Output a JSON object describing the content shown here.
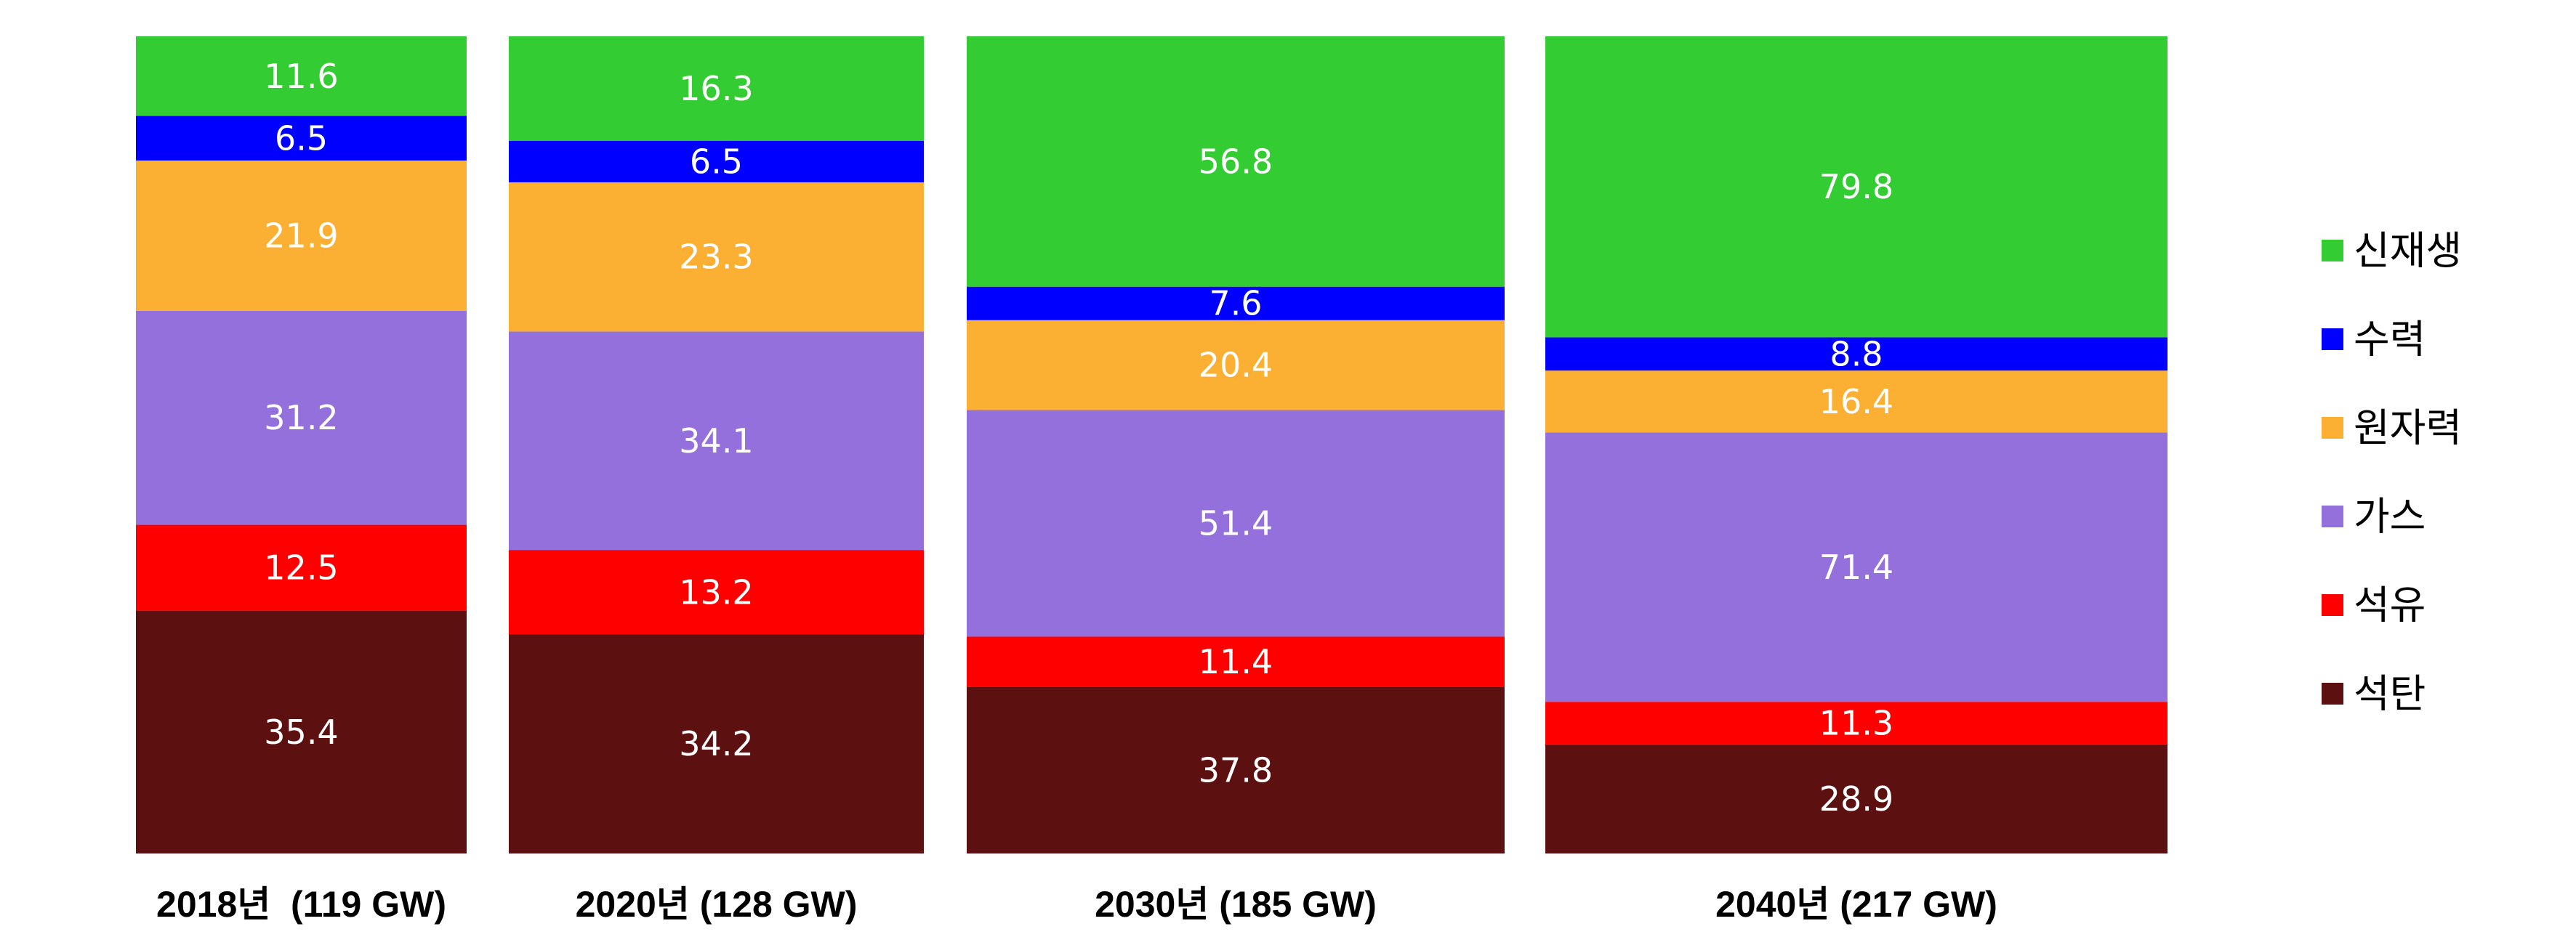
{
  "chart_data": {
    "type": "bar",
    "stacked": true,
    "categories": [
      "2018년  (119 GW)",
      "2020년 (128 GW)",
      "2030년 (185 GW)",
      "2040년 (217 GW)"
    ],
    "series": [
      {
        "name": "석탄",
        "color": "#5c1010",
        "values": [
          35.4,
          34.2,
          37.8,
          28.9
        ]
      },
      {
        "name": "석유",
        "color": "#ff0000",
        "values": [
          12.5,
          13.2,
          11.4,
          11.3
        ]
      },
      {
        "name": "가스",
        "color": "#9370db",
        "values": [
          31.2,
          34.1,
          51.4,
          71.4
        ]
      },
      {
        "name": "원자력",
        "color": "#fbb033",
        "values": [
          21.9,
          23.3,
          20.4,
          16.4
        ]
      },
      {
        "name": "수력",
        "color": "#0000ff",
        "values": [
          6.5,
          6.5,
          7.6,
          8.8
        ]
      },
      {
        "name": "신재생",
        "color": "#33cc33",
        "values": [
          11.6,
          16.3,
          56.8,
          79.8
        ]
      }
    ],
    "legend_order": [
      "신재생",
      "수력",
      "원자력",
      "가스",
      "석유",
      "석탄"
    ],
    "legend_position": "right",
    "value_labels": true,
    "normalized_to_100_percent": true,
    "grid": false
  }
}
